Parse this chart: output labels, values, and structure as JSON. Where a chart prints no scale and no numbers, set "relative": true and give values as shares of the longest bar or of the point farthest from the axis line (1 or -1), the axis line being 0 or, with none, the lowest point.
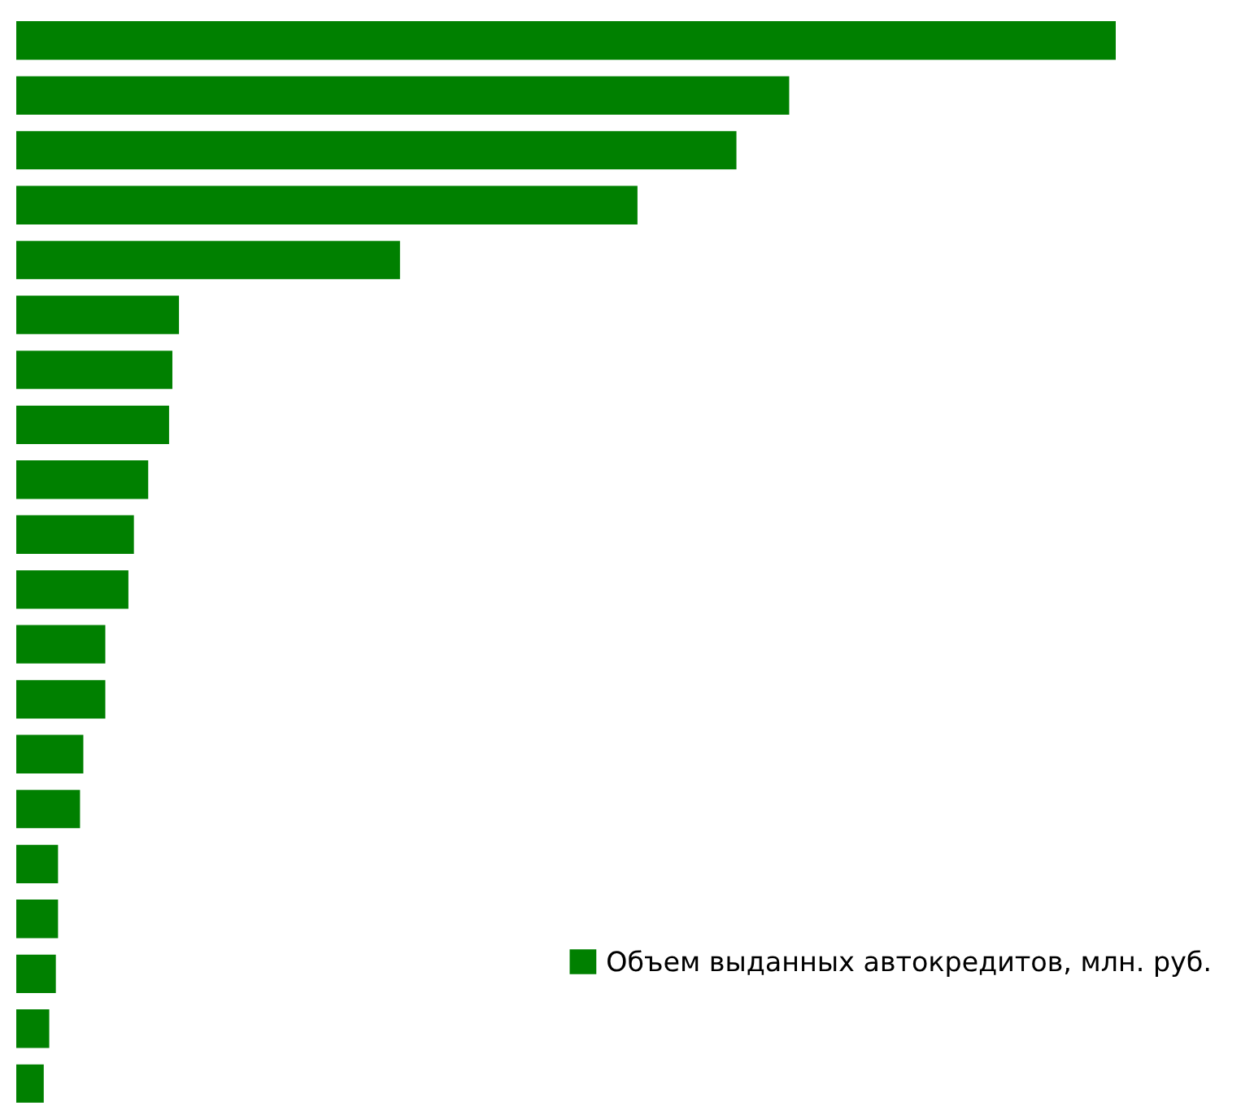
{
  "chart_data": {
    "type": "bar",
    "orientation": "horizontal",
    "relative": true,
    "categories": [
      null,
      null,
      null,
      null,
      null,
      null,
      null,
      null,
      null,
      null,
      null,
      null,
      null,
      null,
      null,
      null,
      null,
      null,
      null,
      null
    ],
    "series": [
      {
        "name": "Объем выданных автокредитов, млн. руб.",
        "color": "#008000",
        "values": [
          1,
          0.703,
          0.655,
          0.565,
          0.349,
          0.148,
          0.142,
          0.139,
          0.12,
          0.107,
          0.102,
          0.081,
          0.081,
          0.061,
          0.058,
          0.038,
          0.038,
          0.036,
          0.03,
          0.025
        ]
      }
    ],
    "legend": "bottom right",
    "grid": false
  }
}
